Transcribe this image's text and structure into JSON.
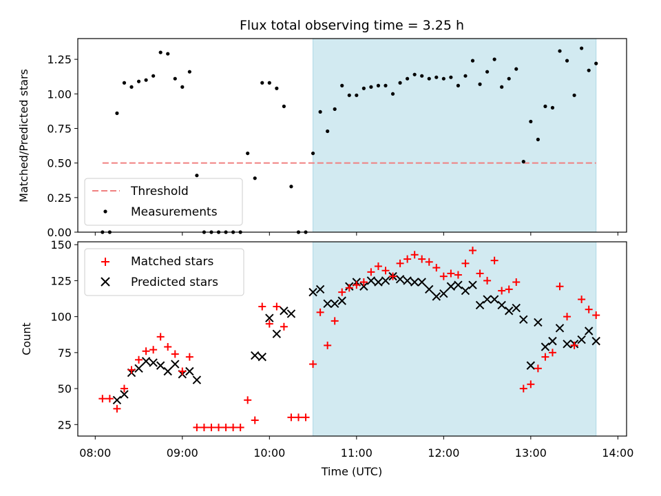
{
  "chart_data": [
    {
      "type": "scatter",
      "title": "Flux total observing time = 3.25 h",
      "xlabel": "",
      "ylabel": "Matched/Predicted stars",
      "xlim": [
        "07:48",
        "14:06"
      ],
      "ylim": [
        0,
        1.4
      ],
      "yticks": [
        "0.00",
        "0.25",
        "0.50",
        "0.75",
        "1.00",
        "1.25"
      ],
      "shaded_region": {
        "x_start": "10:30",
        "x_end": "13:45",
        "color": "#add8e6"
      },
      "threshold": {
        "name": "Threshold",
        "y": 0.5,
        "x_start": "08:05",
        "x_end": "13:45",
        "color": "#f08080"
      },
      "legend": {
        "position": "lower left",
        "entries": [
          "Threshold",
          "Measurements"
        ]
      },
      "series": [
        {
          "name": "Measurements",
          "color": "#000000",
          "x": [
            "08:05",
            "08:10",
            "08:15",
            "08:20",
            "08:25",
            "08:30",
            "08:35",
            "08:40",
            "08:45",
            "08:50",
            "08:55",
            "09:00",
            "09:05",
            "09:10",
            "09:15",
            "09:20",
            "09:25",
            "09:30",
            "09:35",
            "09:40",
            "09:45",
            "09:50",
            "09:55",
            "10:00",
            "10:05",
            "10:10",
            "10:15",
            "10:20",
            "10:25",
            "10:30",
            "10:35",
            "10:40",
            "10:45",
            "10:50",
            "10:55",
            "11:00",
            "11:05",
            "11:10",
            "11:15",
            "11:20",
            "11:25",
            "11:30",
            "11:35",
            "11:40",
            "11:45",
            "11:50",
            "11:55",
            "12:00",
            "12:05",
            "12:10",
            "12:15",
            "12:20",
            "12:25",
            "12:30",
            "12:35",
            "12:40",
            "12:45",
            "12:50",
            "12:55",
            "13:00",
            "13:05",
            "13:10",
            "13:15",
            "13:20",
            "13:25",
            "13:30",
            "13:35",
            "13:40",
            "13:45"
          ],
          "y": [
            0,
            0,
            0.86,
            1.08,
            1.05,
            1.09,
            1.1,
            1.13,
            1.3,
            1.29,
            1.11,
            1.05,
            1.16,
            0.41,
            0,
            0,
            0,
            0,
            0,
            0,
            0.57,
            0.39,
            1.08,
            1.08,
            1.04,
            0.91,
            0.33,
            0,
            0,
            0.57,
            0.87,
            0.73,
            0.89,
            1.06,
            0.99,
            0.99,
            1.04,
            1.05,
            1.06,
            1.06,
            1,
            1.08,
            1.11,
            1.14,
            1.13,
            1.11,
            1.12,
            1.11,
            1.12,
            1.06,
            1.13,
            1.24,
            1.07,
            1.16,
            1.25,
            1.05,
            1.11,
            1.18,
            0.51,
            0.8,
            0.67,
            0.91,
            0.9,
            1.31,
            1.24,
            0.99,
            1.33,
            1.17,
            1.22
          ]
        }
      ]
    },
    {
      "type": "scatter",
      "title": "",
      "xlabel": "Time (UTC)",
      "ylabel": "Count",
      "xlim": [
        "07:48",
        "14:06"
      ],
      "ylim": [
        17,
        152
      ],
      "yticks": [
        "25",
        "50",
        "75",
        "100",
        "125",
        "150"
      ],
      "xticks": [
        "08:00",
        "09:00",
        "10:00",
        "11:00",
        "12:00",
        "13:00",
        "14:00"
      ],
      "shaded_region": {
        "x_start": "10:30",
        "x_end": "13:45",
        "color": "#add8e6"
      },
      "legend": {
        "position": "upper left",
        "entries": [
          "Matched stars",
          "Predicted stars"
        ]
      },
      "series": [
        {
          "name": "Matched stars",
          "marker": "+",
          "color": "#ff0000",
          "x": [
            "08:05",
            "08:10",
            "08:15",
            "08:20",
            "08:25",
            "08:30",
            "08:35",
            "08:40",
            "08:45",
            "08:50",
            "08:55",
            "09:00",
            "09:05",
            "09:10",
            "09:15",
            "09:20",
            "09:25",
            "09:30",
            "09:35",
            "09:40",
            "09:45",
            "09:50",
            "09:55",
            "10:00",
            "10:05",
            "10:10",
            "10:15",
            "10:20",
            "10:25",
            "10:30",
            "10:35",
            "10:40",
            "10:45",
            "10:50",
            "10:55",
            "11:00",
            "11:05",
            "11:10",
            "11:15",
            "11:20",
            "11:25",
            "11:30",
            "11:35",
            "11:40",
            "11:45",
            "11:50",
            "11:55",
            "12:00",
            "12:05",
            "12:10",
            "12:15",
            "12:20",
            "12:25",
            "12:30",
            "12:35",
            "12:40",
            "12:45",
            "12:50",
            "12:55",
            "13:00",
            "13:05",
            "13:10",
            "13:15",
            "13:20",
            "13:25",
            "13:30",
            "13:35",
            "13:40",
            "13:45"
          ],
          "y": [
            43,
            43,
            36,
            50,
            63,
            70,
            76,
            77,
            86,
            79,
            74,
            62,
            72,
            23,
            23,
            23,
            23,
            23,
            23,
            23,
            42,
            28,
            107,
            95,
            107,
            93,
            30,
            30,
            30,
            67,
            103,
            80,
            97,
            117,
            120,
            122,
            124,
            131,
            135,
            132,
            128,
            137,
            140,
            143,
            140,
            138,
            134,
            128,
            130,
            129,
            137,
            146,
            130,
            125,
            139,
            118,
            119,
            124,
            50,
            53,
            64,
            72,
            75,
            121,
            100,
            80,
            112,
            105,
            101
          ]
        },
        {
          "name": "Predicted stars",
          "marker": "x",
          "color": "#000000",
          "x": [
            "08:15",
            "08:20",
            "08:25",
            "08:30",
            "08:35",
            "08:40",
            "08:45",
            "08:50",
            "08:55",
            "09:00",
            "09:05",
            "09:10",
            "09:50",
            "09:55",
            "10:00",
            "10:05",
            "10:10",
            "10:15",
            "10:30",
            "10:35",
            "10:40",
            "10:45",
            "10:50",
            "10:55",
            "11:00",
            "11:05",
            "11:10",
            "11:15",
            "11:20",
            "11:25",
            "11:30",
            "11:35",
            "11:40",
            "11:45",
            "11:50",
            "11:55",
            "12:00",
            "12:05",
            "12:10",
            "12:15",
            "12:20",
            "12:25",
            "12:30",
            "12:35",
            "12:40",
            "12:45",
            "12:50",
            "12:55",
            "13:00",
            "13:05",
            "13:10",
            "13:15",
            "13:20",
            "13:25",
            "13:30",
            "13:35",
            "13:40",
            "13:45"
          ],
          "y": [
            42,
            46,
            61,
            64,
            69,
            68,
            66,
            62,
            67,
            60,
            62,
            56,
            73,
            72,
            99,
            88,
            104,
            102,
            117,
            119,
            109,
            109,
            111,
            121,
            124,
            121,
            125,
            124,
            125,
            128,
            126,
            125,
            124,
            124,
            119,
            114,
            116,
            121,
            122,
            118,
            122,
            108,
            112,
            112,
            108,
            104,
            106,
            98,
            66,
            96,
            79,
            83,
            92,
            81,
            81,
            84,
            90,
            83
          ]
        }
      ]
    }
  ]
}
